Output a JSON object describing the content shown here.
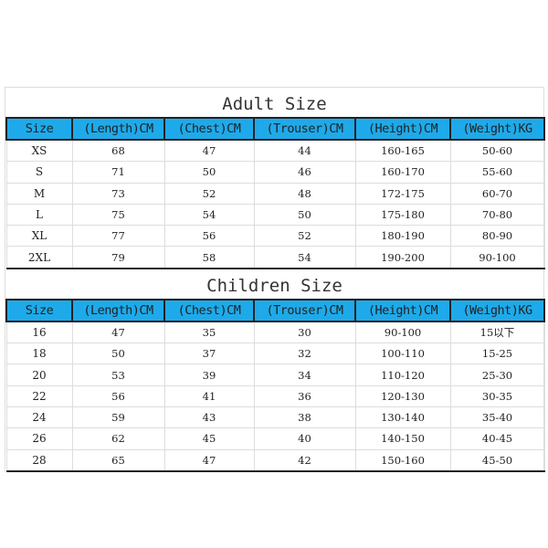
{
  "headers": [
    "Size",
    "(Length)CM",
    "(Chest)CM",
    "(Trouser)CM",
    "(Height)CM",
    "(Weight)KG"
  ],
  "adult": {
    "title": "Adult Size",
    "rows": [
      [
        "XS",
        "68",
        "47",
        "44",
        "160-165",
        "50-60"
      ],
      [
        "S",
        "71",
        "50",
        "46",
        "160-170",
        "55-60"
      ],
      [
        "M",
        "73",
        "52",
        "48",
        "172-175",
        "60-70"
      ],
      [
        "L",
        "75",
        "54",
        "50",
        "175-180",
        "70-80"
      ],
      [
        "XL",
        "77",
        "56",
        "52",
        "180-190",
        "80-90"
      ],
      [
        "2XL",
        "79",
        "58",
        "54",
        "190-200",
        "90-100"
      ]
    ]
  },
  "children": {
    "title": "Children Size",
    "rows": [
      [
        "16",
        "47",
        "35",
        "30",
        "90-100",
        "15以下"
      ],
      [
        "18",
        "50",
        "37",
        "32",
        "100-110",
        "15-25"
      ],
      [
        "20",
        "53",
        "39",
        "34",
        "110-120",
        "25-30"
      ],
      [
        "22",
        "56",
        "41",
        "36",
        "120-130",
        "30-35"
      ],
      [
        "24",
        "59",
        "43",
        "38",
        "130-140",
        "35-40"
      ],
      [
        "26",
        "62",
        "45",
        "40",
        "140-150",
        "40-45"
      ],
      [
        "28",
        "65",
        "47",
        "42",
        "150-160",
        "45-50"
      ]
    ]
  },
  "colors": {
    "header_bg": "#1eaaea",
    "border": "#222222"
  }
}
